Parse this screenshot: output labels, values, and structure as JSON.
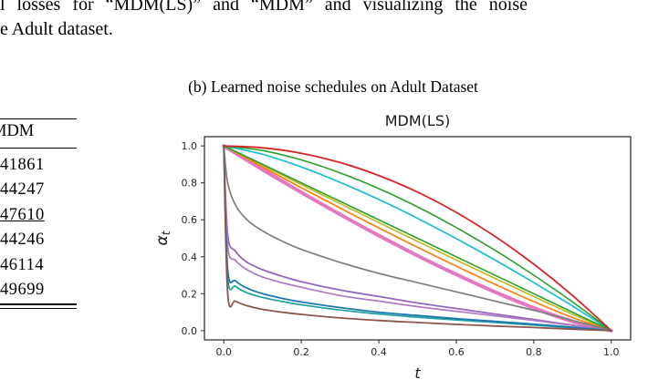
{
  "paper": {
    "top_line_1": "l losses for “MDM(LS)” and “MDM” and visualizing the noise",
    "top_line_2": "e Adult dataset.",
    "caption": "(b) Learned noise schedules on Adult Dataset"
  },
  "table": {
    "header": "MDM",
    "rows": [
      {
        "value": "41861",
        "underline": false
      },
      {
        "value": "44247",
        "underline": false
      },
      {
        "value": "47610",
        "underline": true
      },
      {
        "value": "44246",
        "underline": false
      },
      {
        "value": "46114",
        "underline": false
      },
      {
        "value": "49699",
        "underline": false
      }
    ]
  },
  "chart_data": {
    "type": "line",
    "title": "MDM(LS)",
    "xlabel": "t",
    "ylabel": "α_t",
    "xlim": [
      0,
      1
    ],
    "ylim": [
      0,
      1
    ],
    "xticks": [
      0.0,
      0.2,
      0.4,
      0.6,
      0.8,
      1.0
    ],
    "yticks": [
      0.0,
      0.2,
      0.4,
      0.6,
      0.8,
      1.0
    ],
    "grid": false,
    "legend": "none",
    "axis_color": "#262626",
    "series": [
      {
        "name": "schedule-pink-thick",
        "color": "#e377c2",
        "lw": 4,
        "points": [
          [
            0,
            1
          ],
          [
            0.1,
            0.872
          ],
          [
            0.2,
            0.748
          ],
          [
            0.3,
            0.629
          ],
          [
            0.4,
            0.515
          ],
          [
            0.5,
            0.406
          ],
          [
            0.6,
            0.304
          ],
          [
            0.7,
            0.209
          ],
          [
            0.8,
            0.123
          ],
          [
            0.9,
            0.05
          ],
          [
            1,
            0
          ]
        ]
      },
      {
        "name": "schedule-olive",
        "color": "#bcbd22",
        "lw": 1.7,
        "points": [
          [
            0,
            1
          ],
          [
            0.1,
            0.895
          ],
          [
            0.2,
            0.791
          ],
          [
            0.3,
            0.688
          ],
          [
            0.4,
            0.585
          ],
          [
            0.5,
            0.483
          ],
          [
            0.6,
            0.382
          ],
          [
            0.7,
            0.283
          ],
          [
            0.8,
            0.185
          ],
          [
            0.9,
            0.089
          ],
          [
            1,
            0
          ]
        ]
      },
      {
        "name": "schedule-orange",
        "color": "#ff7f0e",
        "lw": 1.7,
        "points": [
          [
            0,
            1
          ],
          [
            0.1,
            0.886
          ],
          [
            0.2,
            0.774
          ],
          [
            0.3,
            0.664
          ],
          [
            0.4,
            0.556
          ],
          [
            0.5,
            0.451
          ],
          [
            0.6,
            0.349
          ],
          [
            0.7,
            0.251
          ],
          [
            0.8,
            0.157
          ],
          [
            0.9,
            0.071
          ],
          [
            1,
            0
          ]
        ]
      },
      {
        "name": "schedule-cyan",
        "color": "#17becf",
        "lw": 1.7,
        "points": [
          [
            0,
            1
          ],
          [
            0.1,
            0.955
          ],
          [
            0.2,
            0.886
          ],
          [
            0.3,
            0.803
          ],
          [
            0.4,
            0.71
          ],
          [
            0.5,
            0.608
          ],
          [
            0.6,
            0.498
          ],
          [
            0.7,
            0.382
          ],
          [
            0.8,
            0.26
          ],
          [
            0.9,
            0.133
          ],
          [
            1,
            0
          ]
        ]
      },
      {
        "name": "schedule-green-linear",
        "color": "#2ca02c",
        "lw": 1.6,
        "points": [
          [
            0,
            1
          ],
          [
            0.25,
            0.75
          ],
          [
            0.5,
            0.5
          ],
          [
            0.75,
            0.25
          ],
          [
            1,
            0
          ]
        ]
      },
      {
        "name": "schedule-green-concave",
        "color": "#2ca02c",
        "lw": 1.6,
        "points": [
          [
            0,
            1
          ],
          [
            0.1,
            0.975
          ],
          [
            0.2,
            0.924
          ],
          [
            0.3,
            0.854
          ],
          [
            0.4,
            0.769
          ],
          [
            0.5,
            0.67
          ],
          [
            0.6,
            0.558
          ],
          [
            0.7,
            0.435
          ],
          [
            0.8,
            0.3
          ],
          [
            0.9,
            0.155
          ],
          [
            1,
            0
          ]
        ]
      },
      {
        "name": "schedule-red",
        "color": "#d62728",
        "lw": 1.8,
        "points": [
          [
            0,
            1
          ],
          [
            0.1,
            0.99
          ],
          [
            0.2,
            0.96
          ],
          [
            0.3,
            0.91
          ],
          [
            0.4,
            0.84
          ],
          [
            0.5,
            0.75
          ],
          [
            0.6,
            0.64
          ],
          [
            0.7,
            0.51
          ],
          [
            0.8,
            0.36
          ],
          [
            0.9,
            0.19
          ],
          [
            1,
            0
          ]
        ]
      },
      {
        "name": "schedule-gray",
        "color": "#7f7f7f",
        "lw": 1.7,
        "points": [
          [
            0,
            1
          ],
          [
            0.01,
            0.8
          ],
          [
            0.03,
            0.68
          ],
          [
            0.06,
            0.6
          ],
          [
            0.1,
            0.54
          ],
          [
            0.15,
            0.485
          ],
          [
            0.2,
            0.44
          ],
          [
            0.3,
            0.37
          ],
          [
            0.4,
            0.31
          ],
          [
            0.5,
            0.26
          ],
          [
            0.6,
            0.21
          ],
          [
            0.7,
            0.16
          ],
          [
            0.8,
            0.11
          ],
          [
            0.9,
            0.055
          ],
          [
            1,
            0
          ]
        ]
      },
      {
        "name": "schedule-purple",
        "color": "#9467bd",
        "lw": 1.8,
        "points": [
          [
            0,
            1
          ],
          [
            0.01,
            0.52
          ],
          [
            0.03,
            0.43
          ],
          [
            0.06,
            0.37
          ],
          [
            0.1,
            0.33
          ],
          [
            0.15,
            0.295
          ],
          [
            0.2,
            0.265
          ],
          [
            0.3,
            0.22
          ],
          [
            0.4,
            0.185
          ],
          [
            0.5,
            0.15
          ],
          [
            0.6,
            0.12
          ],
          [
            0.7,
            0.09
          ],
          [
            0.8,
            0.06
          ],
          [
            0.9,
            0.03
          ],
          [
            1,
            0
          ]
        ]
      },
      {
        "name": "schedule-plum",
        "color": "#af7ac5",
        "lw": 1.7,
        "points": [
          [
            0,
            1
          ],
          [
            0.01,
            0.46
          ],
          [
            0.03,
            0.38
          ],
          [
            0.06,
            0.33
          ],
          [
            0.1,
            0.29
          ],
          [
            0.15,
            0.26
          ],
          [
            0.2,
            0.235
          ],
          [
            0.3,
            0.19
          ],
          [
            0.4,
            0.16
          ],
          [
            0.5,
            0.13
          ],
          [
            0.6,
            0.105
          ],
          [
            0.7,
            0.08
          ],
          [
            0.8,
            0.055
          ],
          [
            0.9,
            0.028
          ],
          [
            1,
            0
          ]
        ]
      },
      {
        "name": "schedule-teal",
        "color": "#20a39e",
        "lw": 1.7,
        "points": [
          [
            0,
            1
          ],
          [
            0.01,
            0.29
          ],
          [
            0.03,
            0.24
          ],
          [
            0.06,
            0.205
          ],
          [
            0.1,
            0.18
          ],
          [
            0.15,
            0.158
          ],
          [
            0.2,
            0.14
          ],
          [
            0.3,
            0.112
          ],
          [
            0.4,
            0.09
          ],
          [
            0.5,
            0.073
          ],
          [
            0.6,
            0.058
          ],
          [
            0.7,
            0.044
          ],
          [
            0.8,
            0.03
          ],
          [
            0.9,
            0.015
          ],
          [
            1,
            0
          ]
        ]
      },
      {
        "name": "schedule-blue",
        "color": "#1f77b4",
        "lw": 1.8,
        "points": [
          [
            0,
            1
          ],
          [
            0.01,
            0.33
          ],
          [
            0.03,
            0.27
          ],
          [
            0.06,
            0.23
          ],
          [
            0.1,
            0.2
          ],
          [
            0.15,
            0.175
          ],
          [
            0.2,
            0.155
          ],
          [
            0.3,
            0.125
          ],
          [
            0.4,
            0.1
          ],
          [
            0.5,
            0.082
          ],
          [
            0.6,
            0.065
          ],
          [
            0.7,
            0.05
          ],
          [
            0.8,
            0.035
          ],
          [
            0.9,
            0.018
          ],
          [
            1,
            0
          ]
        ]
      },
      {
        "name": "schedule-brown",
        "color": "#8c564b",
        "lw": 1.8,
        "points": [
          [
            0,
            1
          ],
          [
            0.01,
            0.2
          ],
          [
            0.03,
            0.16
          ],
          [
            0.06,
            0.135
          ],
          [
            0.1,
            0.115
          ],
          [
            0.15,
            0.1
          ],
          [
            0.2,
            0.088
          ],
          [
            0.3,
            0.069
          ],
          [
            0.4,
            0.055
          ],
          [
            0.5,
            0.044
          ],
          [
            0.6,
            0.034
          ],
          [
            0.7,
            0.025
          ],
          [
            0.8,
            0.017
          ],
          [
            0.9,
            0.008
          ],
          [
            1,
            0
          ]
        ]
      }
    ]
  }
}
